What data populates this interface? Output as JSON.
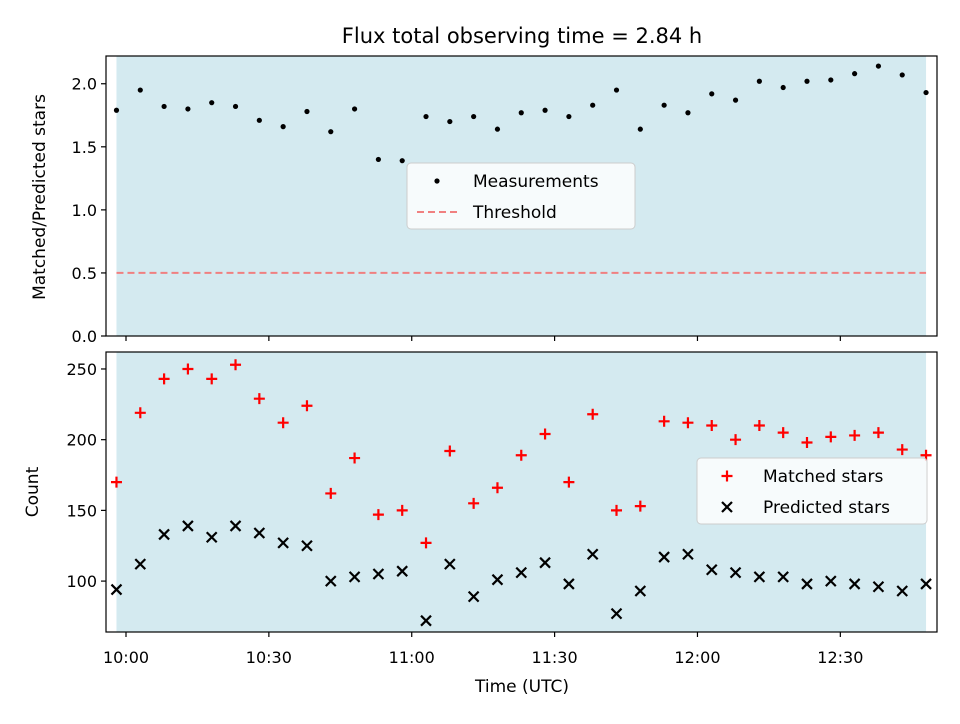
{
  "chart_data": [
    {
      "type": "scatter",
      "title": "Flux total observing time = 2.84 h",
      "xlabel": "",
      "ylabel": "Matched/Predicted stars",
      "ylim": [
        0,
        2.22
      ],
      "yticks": [
        0.0,
        0.5,
        1.0,
        1.5,
        2.0
      ],
      "ytick_labels": [
        "0.0",
        "0.5",
        "1.0",
        "1.5",
        "2.0"
      ],
      "xticks": [
        "10:00",
        "10:30",
        "11:00",
        "11:30",
        "12:00",
        "12:30"
      ],
      "shaded_span": [
        "09:58",
        "12:48"
      ],
      "shade_color": "#d4eaf0",
      "legend_position": "center",
      "series": [
        {
          "name": "Measurements",
          "marker": "dot",
          "color": "#000000",
          "x": [
            "09:58",
            "10:03",
            "10:08",
            "10:13",
            "10:18",
            "10:23",
            "10:28",
            "10:33",
            "10:38",
            "10:43",
            "10:48",
            "10:53",
            "10:58",
            "11:03",
            "11:08",
            "11:13",
            "11:18",
            "11:23",
            "11:28",
            "11:33",
            "11:38",
            "11:43",
            "11:48",
            "11:53",
            "11:58",
            "12:03",
            "12:08",
            "12:13",
            "12:18",
            "12:23",
            "12:28",
            "12:33",
            "12:38",
            "12:43",
            "12:48"
          ],
          "y": [
            1.79,
            1.95,
            1.82,
            1.8,
            1.85,
            1.82,
            1.71,
            1.66,
            1.78,
            1.62,
            1.8,
            1.4,
            1.39,
            1.74,
            1.7,
            1.74,
            1.64,
            1.77,
            1.79,
            1.74,
            1.83,
            1.95,
            1.64,
            1.83,
            1.77,
            1.92,
            1.87,
            2.02,
            1.97,
            2.02,
            2.03,
            2.08,
            2.14,
            2.07,
            1.93
          ]
        },
        {
          "name": "Threshold",
          "line_style": "dashed",
          "color": "#f08080",
          "x": [
            "09:58",
            "12:48"
          ],
          "y": [
            0.5,
            0.5
          ]
        }
      ]
    },
    {
      "type": "scatter",
      "title": "",
      "xlabel": "Time (UTC)",
      "ylabel": "Count",
      "ylim": [
        64,
        262
      ],
      "yticks": [
        100,
        150,
        200,
        250
      ],
      "ytick_labels": [
        "100",
        "150",
        "200",
        "250"
      ],
      "xticks": [
        "10:00",
        "10:30",
        "11:00",
        "11:30",
        "12:00",
        "12:30"
      ],
      "shaded_span": [
        "09:58",
        "12:48"
      ],
      "shade_color": "#d4eaf0",
      "legend_position": "center-right",
      "series": [
        {
          "name": "Matched stars",
          "marker": "plus",
          "color": "#ff0000",
          "x": [
            "09:58",
            "10:03",
            "10:08",
            "10:13",
            "10:18",
            "10:23",
            "10:28",
            "10:33",
            "10:38",
            "10:43",
            "10:48",
            "10:53",
            "10:58",
            "11:03",
            "11:08",
            "11:13",
            "11:18",
            "11:23",
            "11:28",
            "11:33",
            "11:38",
            "11:43",
            "11:48",
            "11:53",
            "11:58",
            "12:03",
            "12:08",
            "12:13",
            "12:18",
            "12:23",
            "12:28",
            "12:33",
            "12:38",
            "12:43",
            "12:48"
          ],
          "y": [
            170,
            219,
            243,
            250,
            243,
            253,
            229,
            212,
            224,
            162,
            187,
            147,
            150,
            127,
            192,
            155,
            166,
            189,
            204,
            170,
            218,
            150,
            153,
            213,
            212,
            210,
            200,
            210,
            205,
            198,
            202,
            203,
            205,
            193,
            189
          ]
        },
        {
          "name": "Predicted stars",
          "marker": "x",
          "color": "#000000",
          "x": [
            "09:58",
            "10:03",
            "10:08",
            "10:13",
            "10:18",
            "10:23",
            "10:28",
            "10:33",
            "10:38",
            "10:43",
            "10:48",
            "10:53",
            "10:58",
            "11:03",
            "11:08",
            "11:13",
            "11:18",
            "11:23",
            "11:28",
            "11:33",
            "11:38",
            "11:43",
            "11:48",
            "11:53",
            "11:58",
            "12:03",
            "12:08",
            "12:13",
            "12:18",
            "12:23",
            "12:28",
            "12:33",
            "12:38",
            "12:43",
            "12:48"
          ],
          "y": [
            94,
            112,
            133,
            139,
            131,
            139,
            134,
            127,
            125,
            100,
            103,
            105,
            107,
            72,
            112,
            89,
            101,
            106,
            113,
            98,
            119,
            77,
            93,
            117,
            119,
            108,
            106,
            103,
            103,
            98,
            100,
            98,
            96,
            93,
            98
          ]
        }
      ]
    }
  ]
}
